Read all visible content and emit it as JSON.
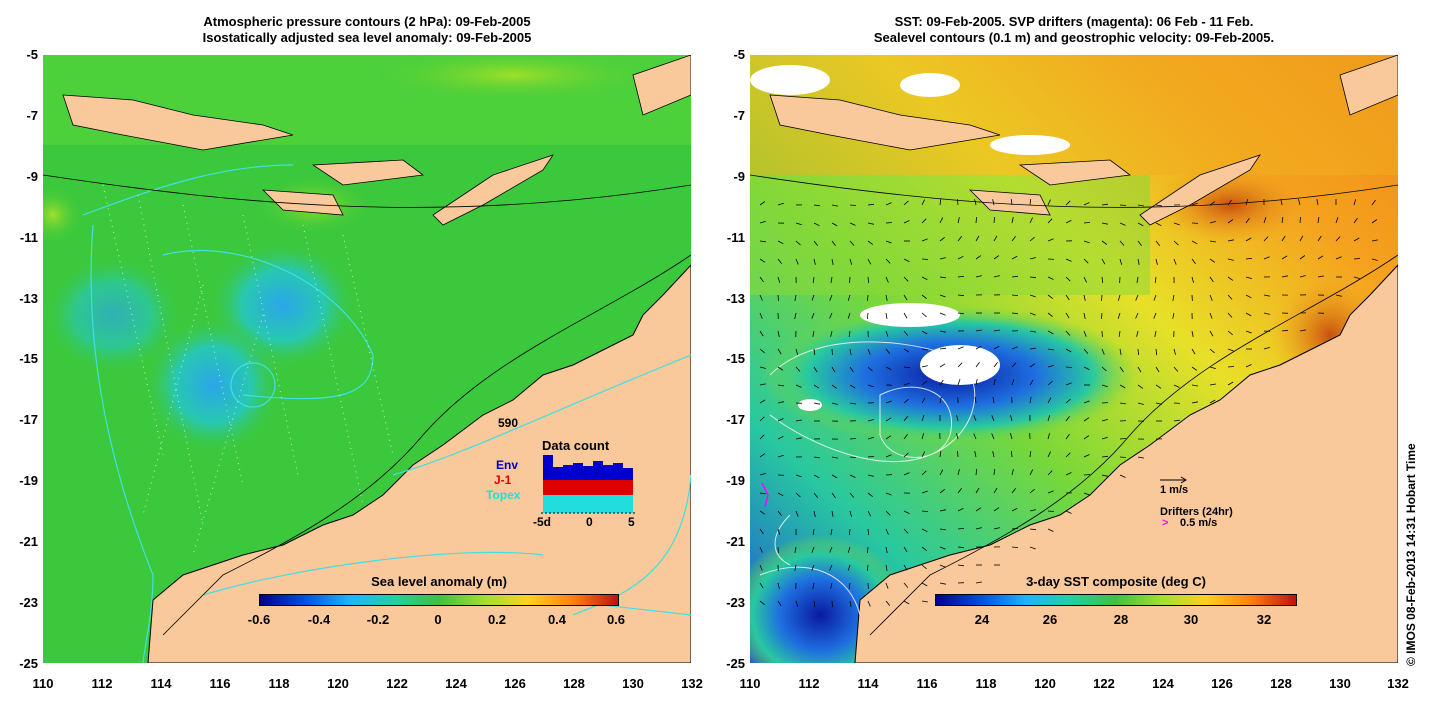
{
  "left_panel": {
    "title_line1": "Atmospheric pressure contours (2 hPa): 09-Feb-2005",
    "title_line2": "Isostatically adjusted sea level anomaly: 09-Feb-2005",
    "colorbar_label": "Sea level anomaly (m)",
    "colorbar_ticks": [
      "-0.6",
      "-0.4",
      "-0.2",
      "0",
      "0.2",
      "0.4",
      "0.6"
    ],
    "inset": {
      "count": "590",
      "title": "Data count",
      "series": [
        {
          "name": "Env",
          "color": "#0000cc"
        },
        {
          "name": "J-1",
          "color": "#dd0000"
        },
        {
          "name": "Topex",
          "color": "#22dddd"
        }
      ],
      "x_ticks": [
        "-5d",
        "0",
        "5"
      ]
    }
  },
  "right_panel": {
    "title_line1": "SST: 09-Feb-2005. SVP drifters (magenta): 06 Feb - 11 Feb.",
    "title_line2": "Sealevel contours (0.1 m) and geostrophic velocity: 09-Feb-2005.",
    "colorbar_label": "3-day SST composite (deg C)",
    "colorbar_ticks": [
      "24",
      "26",
      "28",
      "30",
      "32"
    ],
    "velocity_scale": "1 m/s",
    "drifters_label": "Drifters (24hr)",
    "drifter_speed": "0.5 m/s"
  },
  "y_ticks": [
    "-5",
    "-7",
    "-9",
    "-11",
    "-13",
    "-15",
    "-17",
    "-19",
    "-21",
    "-23",
    "-25"
  ],
  "x_ticks": [
    "110",
    "112",
    "114",
    "116",
    "118",
    "120",
    "122",
    "124",
    "126",
    "128",
    "130",
    "132"
  ],
  "credit": "© IMOS 08-Feb-2013 14:31 Hobart Time",
  "colors": {
    "land": "#f9c89b",
    "ocean_sla": "#3cc83c",
    "sst_warm": "#f5a21e",
    "sst_cool": "#1e4fd8",
    "contour_cyan": "#40e0e0",
    "drifter_magenta": "#ff00ff"
  }
}
